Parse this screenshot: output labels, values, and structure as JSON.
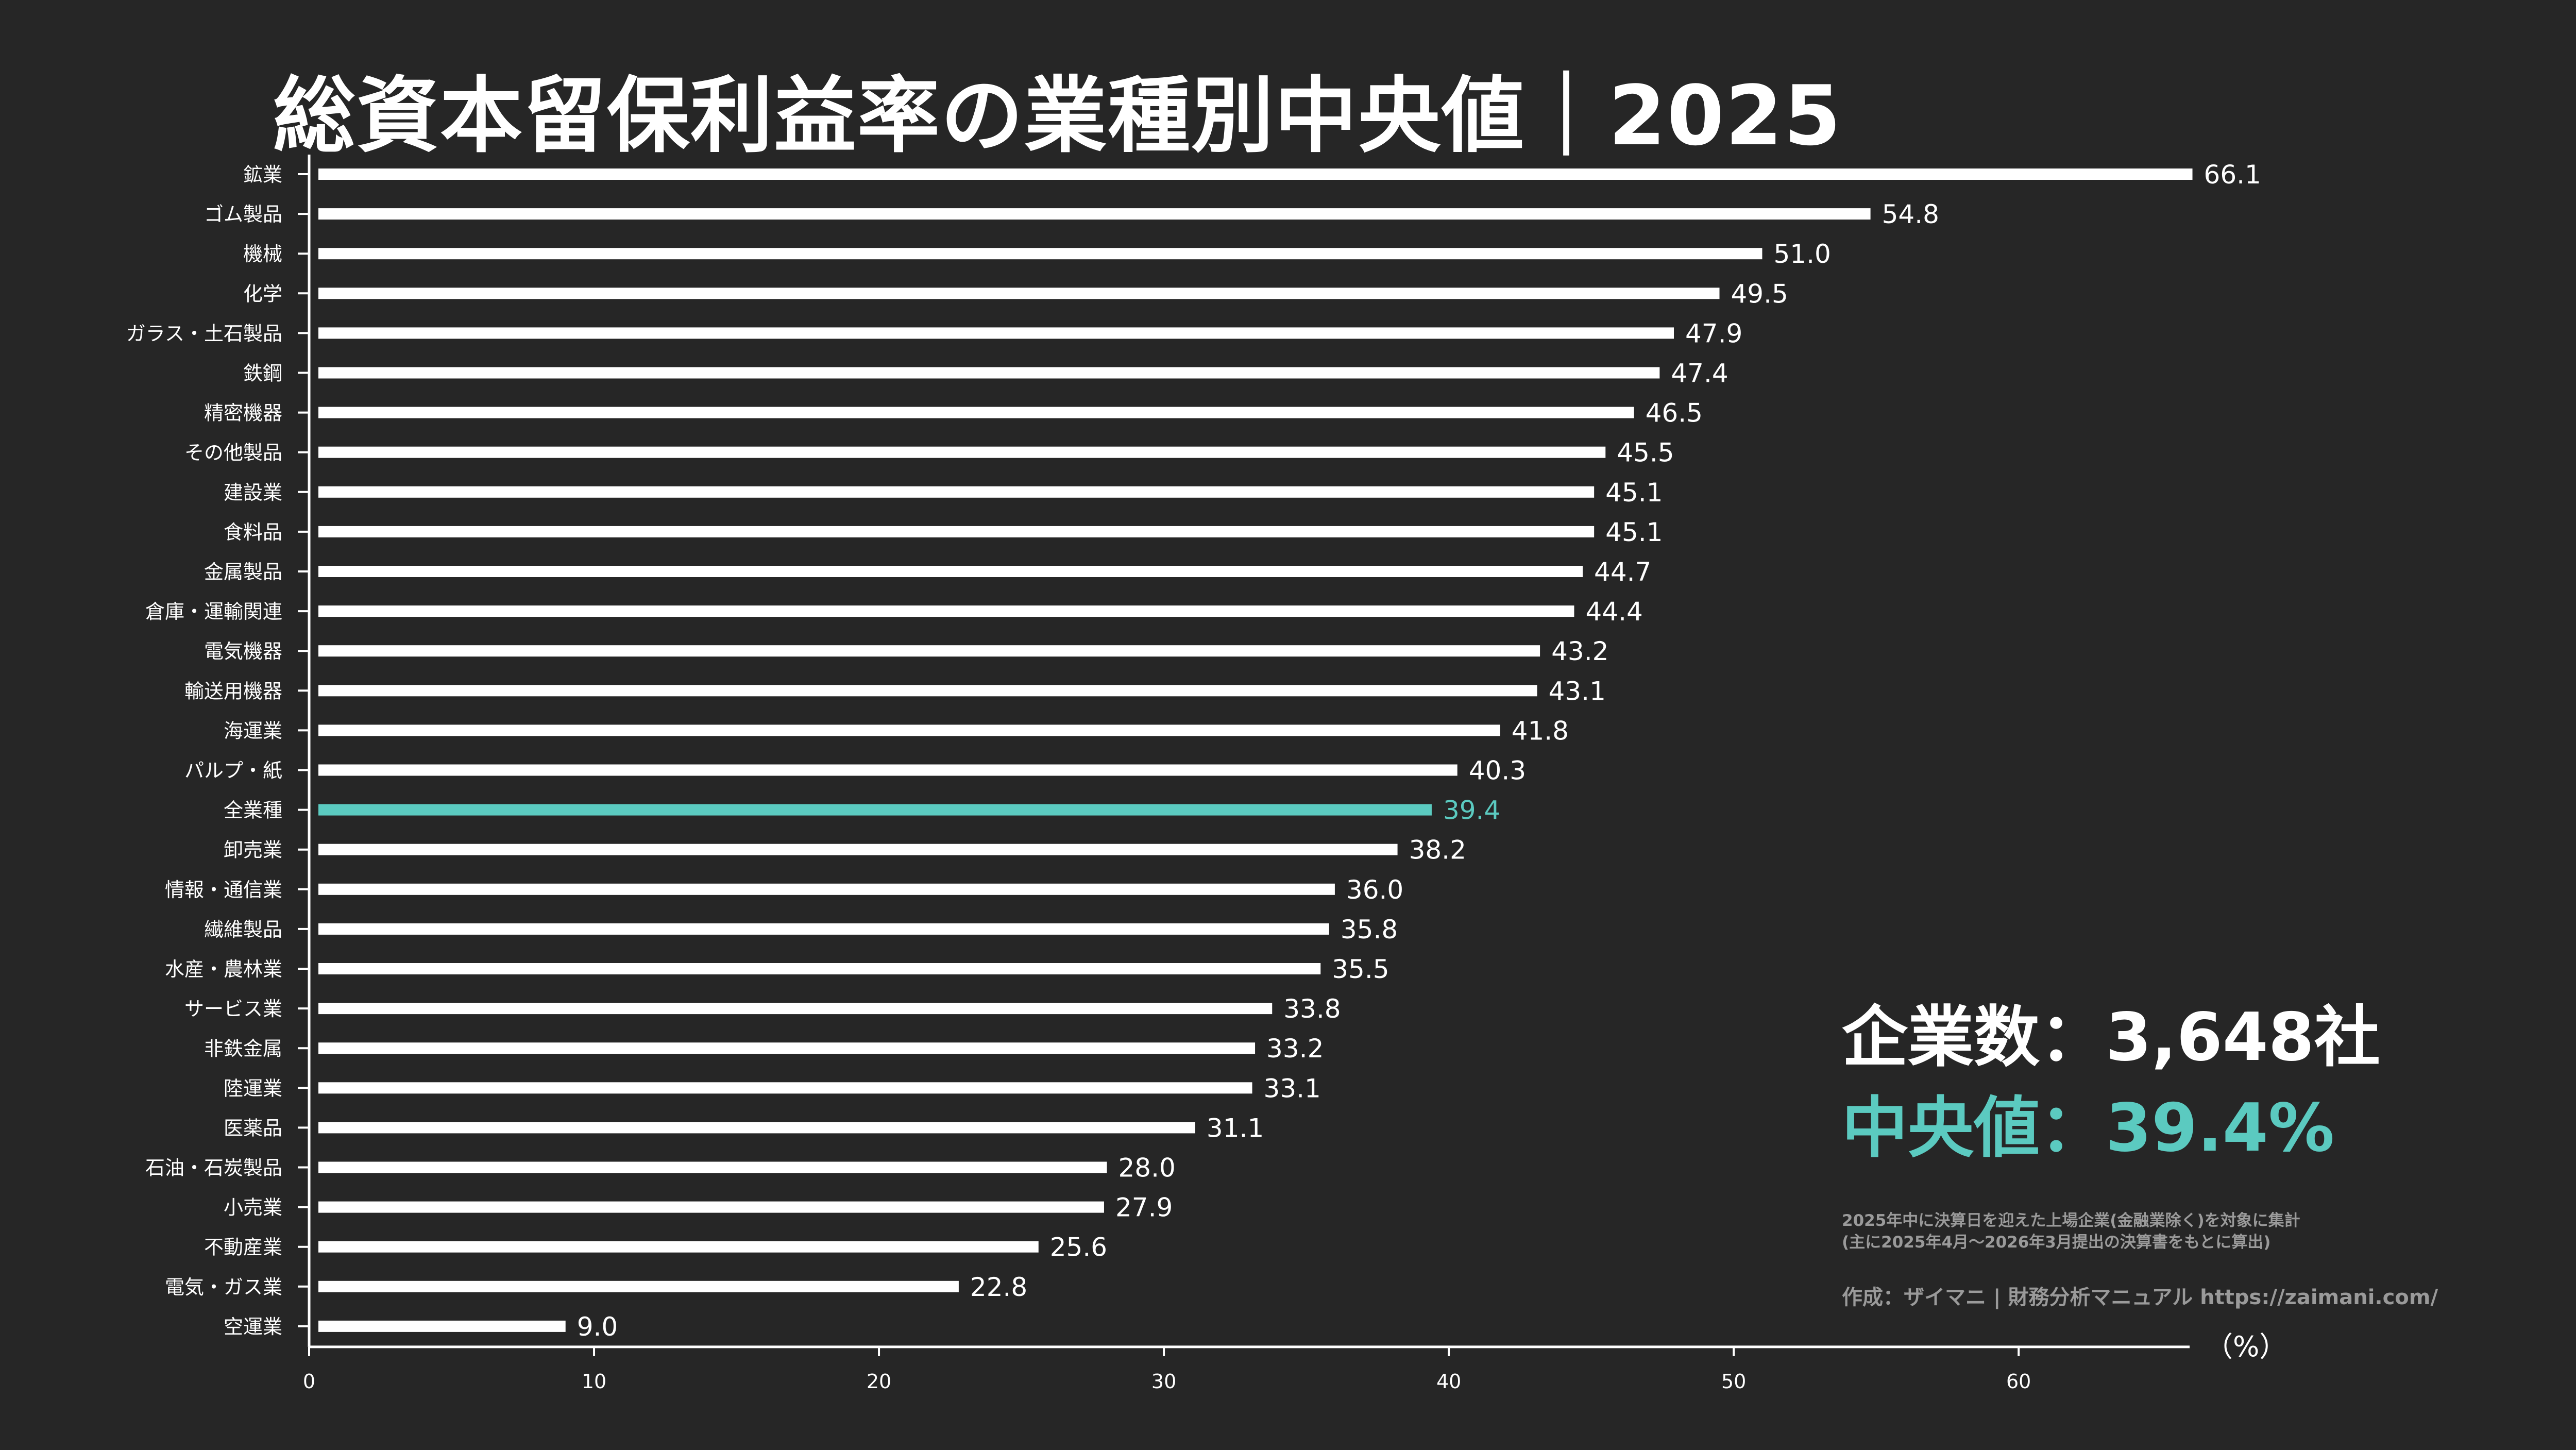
{
  "title": "総資本留保利益率の業種別中央値｜2025",
  "stats": {
    "count_label": "企業数：3,648社",
    "median_label": "中央値：39.4%"
  },
  "footnote": {
    "line1": "2025年中に決算日を迎えた上場企業(金融業除く)を対象に集計",
    "line2": "(主に2025年4月～2026年3月提出の決算書をもとに算出)"
  },
  "credit": "作成：ザイマニ | 財務分析マニュアル https://zaimani.com/",
  "colors": {
    "background": "#262626",
    "bar": "#ffffff",
    "highlight": "#5bcac0",
    "text": "#ffffff",
    "muted": "#9a9a9a"
  },
  "chart_data": {
    "type": "bar",
    "orientation": "horizontal",
    "categories": [
      "鉱業",
      "ゴム製品",
      "機械",
      "化学",
      "ガラス・土石製品",
      "鉄鋼",
      "精密機器",
      "その他製品",
      "建設業",
      "食料品",
      "金属製品",
      "倉庫・運輸関連",
      "電気機器",
      "輸送用機器",
      "海運業",
      "パルプ・紙",
      "全業種",
      "卸売業",
      "情報・通信業",
      "繊維製品",
      "水産・農林業",
      "サービス業",
      "非鉄金属",
      "陸運業",
      "医薬品",
      "石油・石炭製品",
      "小売業",
      "不動産業",
      "電気・ガス業",
      "空運業"
    ],
    "values": [
      66.1,
      54.8,
      51.0,
      49.5,
      47.9,
      47.4,
      46.5,
      45.5,
      45.1,
      45.1,
      44.7,
      44.4,
      43.2,
      43.1,
      41.8,
      40.3,
      39.4,
      38.2,
      36.0,
      35.8,
      35.5,
      33.8,
      33.2,
      33.1,
      31.1,
      28.0,
      27.9,
      25.6,
      22.8,
      9.0
    ],
    "value_labels": [
      "66.1",
      "54.8",
      "51.0",
      "49.5",
      "47.9",
      "47.4",
      "46.5",
      "45.5",
      "45.1",
      "45.1",
      "44.7",
      "44.4",
      "43.2",
      "43.1",
      "41.8",
      "40.3",
      "39.4",
      "38.2",
      "36.0",
      "35.8",
      "35.5",
      "33.8",
      "33.2",
      "33.1",
      "31.1",
      "28.0",
      "27.9",
      "25.6",
      "22.8",
      "9.0"
    ],
    "highlight_category": "全業種",
    "xlim": [
      0,
      66
    ],
    "xticks": [
      "0",
      "10",
      "20",
      "30",
      "40",
      "50",
      "60"
    ],
    "xunit": "（%）",
    "grid": false
  }
}
